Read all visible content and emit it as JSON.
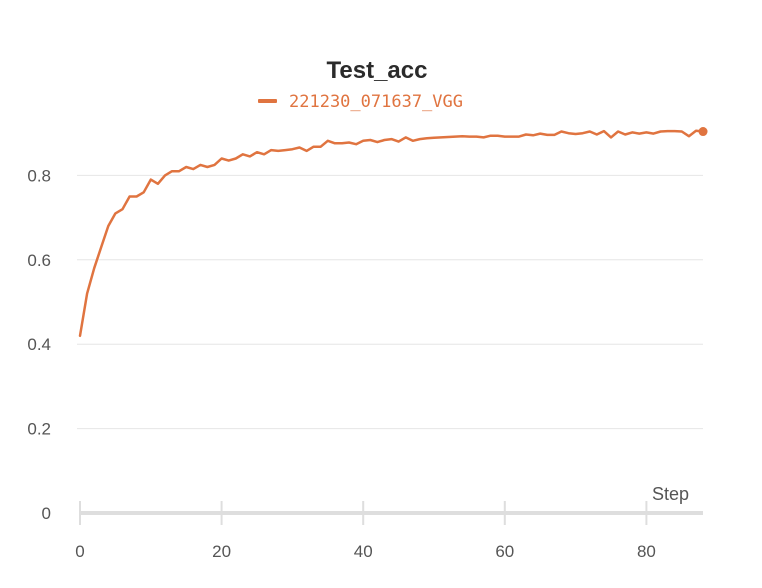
{
  "chart_data": {
    "type": "line",
    "title": "Test_acc",
    "xlabel": "Step",
    "ylabel": "",
    "xlim": [
      0,
      88
    ],
    "ylim": [
      0,
      0.9
    ],
    "x_ticks": [
      0,
      20,
      40,
      60,
      80
    ],
    "x_tick_labels": [
      "0",
      "20",
      "40",
      "60",
      "80"
    ],
    "y_ticks": [
      0,
      0.2,
      0.4,
      0.6,
      0.8
    ],
    "y_tick_labels": [
      "0",
      "0.2",
      "0.4",
      "0.6",
      "0.8"
    ],
    "grid": "horizontal",
    "legend_position": "top-center",
    "series": [
      {
        "name": "221230_071637_VGG",
        "color": "#e07440",
        "x": [
          0,
          1,
          2,
          3,
          4,
          5,
          6,
          7,
          8,
          9,
          10,
          11,
          12,
          13,
          14,
          15,
          16,
          17,
          18,
          19,
          20,
          21,
          22,
          23,
          24,
          25,
          26,
          27,
          28,
          29,
          30,
          31,
          32,
          33,
          34,
          35,
          36,
          37,
          38,
          39,
          40,
          41,
          42,
          43,
          44,
          45,
          46,
          47,
          48,
          49,
          50,
          51,
          52,
          53,
          54,
          55,
          56,
          57,
          58,
          59,
          60,
          61,
          62,
          63,
          64,
          65,
          66,
          67,
          68,
          69,
          70,
          71,
          72,
          73,
          74,
          75,
          76,
          77,
          78,
          79,
          80,
          81,
          82,
          83,
          84,
          85,
          86,
          87,
          88
        ],
        "values": [
          0.42,
          0.52,
          0.58,
          0.63,
          0.68,
          0.71,
          0.72,
          0.75,
          0.75,
          0.76,
          0.79,
          0.78,
          0.8,
          0.81,
          0.81,
          0.82,
          0.815,
          0.825,
          0.82,
          0.825,
          0.84,
          0.835,
          0.84,
          0.85,
          0.845,
          0.855,
          0.85,
          0.86,
          0.858,
          0.86,
          0.862,
          0.866,
          0.858,
          0.868,
          0.868,
          0.882,
          0.876,
          0.876,
          0.878,
          0.874,
          0.882,
          0.884,
          0.879,
          0.884,
          0.886,
          0.88,
          0.89,
          0.882,
          0.886,
          0.888,
          0.889,
          0.89,
          0.891,
          0.892,
          0.893,
          0.892,
          0.892,
          0.89,
          0.894,
          0.894,
          0.892,
          0.892,
          0.892,
          0.897,
          0.895,
          0.899,
          0.896,
          0.896,
          0.904,
          0.9,
          0.898,
          0.9,
          0.904,
          0.897,
          0.905,
          0.89,
          0.904,
          0.897,
          0.902,
          0.899,
          0.902,
          0.899,
          0.904,
          0.905,
          0.905,
          0.904,
          0.893,
          0.906,
          0.904
        ]
      }
    ]
  }
}
